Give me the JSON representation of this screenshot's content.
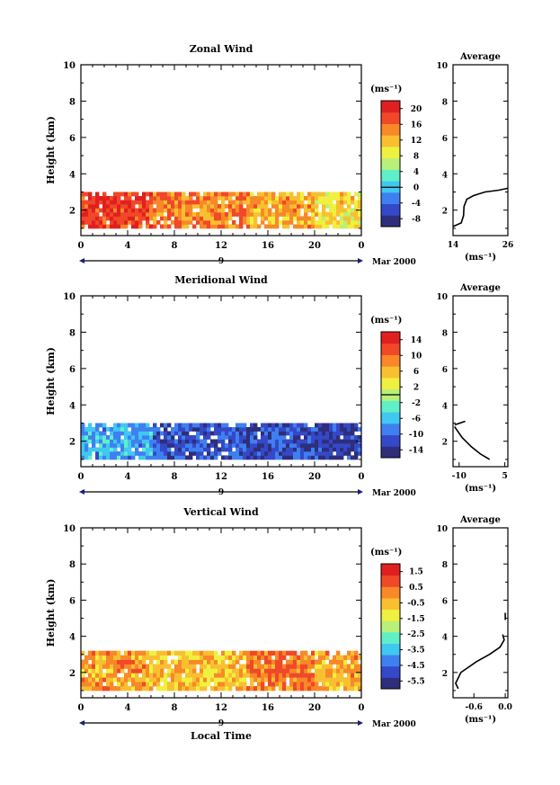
{
  "chart_data": [
    {
      "type": "heatmap",
      "title": "Zonal Wind",
      "ylabel": "Height (km)",
      "xlabel": "",
      "xticks": [
        "0",
        "4",
        "8",
        "12",
        "16",
        "20",
        "0"
      ],
      "yticks": [
        "2",
        "4",
        "6",
        "8",
        "10"
      ],
      "xlim": [
        0,
        24
      ],
      "ylim": [
        0.6,
        10
      ],
      "date_marker": "9",
      "date_text": "Mar 2000",
      "colorbar": {
        "unit": "(ms⁻¹)",
        "ticks": [
          "20",
          "16",
          "12",
          "8",
          "4",
          "0",
          "-4",
          "-8"
        ],
        "range": [
          -10,
          22
        ],
        "zero_line": 0,
        "colors": [
          "#2e2e7a",
          "#3548c8",
          "#3f80f0",
          "#40c8f0",
          "#5ff0c8",
          "#b8f07a",
          "#f0f040",
          "#f8c030",
          "#f88828",
          "#f04828",
          "#e02020"
        ]
      },
      "field": {
        "height_range_km": [
          1.0,
          3.0
        ],
        "gaps": "scattered missing bins near top of echo region",
        "local_time_segments": [
          {
            "from": 0,
            "to": 6,
            "value": 19
          },
          {
            "from": 6,
            "to": 14,
            "value": 15
          },
          {
            "from": 14,
            "to": 20,
            "value": 13
          },
          {
            "from": 20,
            "to": 24,
            "value": 10
          }
        ]
      },
      "profile": {
        "title": "Average",
        "xticks": [
          "14",
          "26"
        ],
        "xlim": [
          14,
          26
        ],
        "xlabel": "(ms⁻¹)",
        "yticks": [
          "2",
          "4",
          "6",
          "8",
          "10"
        ],
        "points": [
          [
            14,
            1.1
          ],
          [
            15.8,
            1.3
          ],
          [
            16.3,
            1.7
          ],
          [
            16.4,
            2.2
          ],
          [
            17,
            2.6
          ],
          [
            18.5,
            2.8
          ],
          [
            21,
            3.0
          ],
          [
            24,
            3.1
          ],
          [
            26,
            3.2
          ]
        ]
      }
    },
    {
      "type": "heatmap",
      "title": "Meridional Wind",
      "ylabel": "Height (km)",
      "xlabel": "",
      "xticks": [
        "0",
        "4",
        "8",
        "12",
        "16",
        "20",
        "0"
      ],
      "yticks": [
        "2",
        "4",
        "6",
        "8",
        "10"
      ],
      "xlim": [
        0,
        24
      ],
      "ylim": [
        0.6,
        10
      ],
      "date_marker": "9",
      "date_text": "Mar 2000",
      "colorbar": {
        "unit": "(ms⁻¹)",
        "ticks": [
          "14",
          "10",
          "6",
          "2",
          "-2",
          "-6",
          "-10",
          "-14"
        ],
        "range": [
          -16,
          16
        ],
        "zero_line": 0,
        "colors": [
          "#2e2e7a",
          "#3548c8",
          "#3f80f0",
          "#40c8f0",
          "#5ff0c8",
          "#b8f07a",
          "#f0f040",
          "#f8c030",
          "#f88828",
          "#f04828",
          "#e02020"
        ]
      },
      "field": {
        "height_range_km": [
          1.0,
          3.0
        ],
        "gaps": "scattered missing bins",
        "local_time_segments": [
          {
            "from": 0,
            "to": 6,
            "value": -7
          },
          {
            "from": 6,
            "to": 14,
            "value": -11
          },
          {
            "from": 14,
            "to": 20,
            "value": -12
          },
          {
            "from": 20,
            "to": 24,
            "value": -13
          }
        ]
      },
      "profile": {
        "title": "Average",
        "xticks": [
          "-10",
          "5"
        ],
        "xlim": [
          -12,
          6
        ],
        "xlabel": "(ms⁻¹)",
        "yticks": [
          "2",
          "4",
          "6",
          "8",
          "10"
        ],
        "points": [
          [
            -11.5,
            2.9
          ],
          [
            -8,
            3.1
          ]
        ],
        "points2": [
          [
            -11.5,
            2.8
          ],
          [
            -9,
            2.2
          ],
          [
            -6,
            1.7
          ],
          [
            -3,
            1.3
          ],
          [
            0,
            1.0
          ]
        ]
      }
    },
    {
      "type": "heatmap",
      "title": "Vertical Wind",
      "ylabel": "Height (km)",
      "xlabel": "Local Time",
      "xticks": [
        "0",
        "4",
        "8",
        "12",
        "16",
        "20",
        "0"
      ],
      "yticks": [
        "2",
        "4",
        "6",
        "8",
        "10"
      ],
      "xlim": [
        0,
        24
      ],
      "ylim": [
        0.6,
        10
      ],
      "date_marker": "9",
      "date_text": "Mar 2000",
      "colorbar": {
        "unit": "(ms⁻¹)",
        "ticks": [
          "1.5",
          "0.5",
          "-0.5",
          "-1.5",
          "-2.5",
          "-3.5",
          "-4.5",
          "-5.5"
        ],
        "range": [
          -6,
          2
        ],
        "zero_line": null,
        "colors": [
          "#2e2e7a",
          "#3548c8",
          "#3f80f0",
          "#40c8f0",
          "#5ff0c8",
          "#b8f07a",
          "#f0f040",
          "#f8c030",
          "#f88828",
          "#f04828",
          "#e02020"
        ]
      },
      "field": {
        "height_range_km": [
          1.0,
          3.2
        ],
        "gaps": "few missing bins",
        "local_time_segments": [
          {
            "from": 0,
            "to": 6,
            "value": -0.2
          },
          {
            "from": 6,
            "to": 14,
            "value": -0.6
          },
          {
            "from": 14,
            "to": 20,
            "value": 0.4
          },
          {
            "from": 20,
            "to": 24,
            "value": -0.3
          }
        ]
      },
      "profile": {
        "title": "Average",
        "xticks": [
          "-0.6",
          "0.0"
        ],
        "xlim": [
          -1.0,
          0.05
        ],
        "xlabel": "(ms⁻¹)",
        "yticks": [
          "2",
          "4",
          "6",
          "8",
          "10"
        ],
        "points": [
          [
            -0.9,
            1.1
          ],
          [
            -0.95,
            1.4
          ],
          [
            -0.85,
            2.0
          ],
          [
            -0.55,
            2.6
          ],
          [
            -0.3,
            3.0
          ],
          [
            -0.1,
            3.4
          ],
          [
            -0.02,
            3.8
          ],
          [
            -0.05,
            4.1
          ]
        ],
        "points2": [
          [
            0.0,
            4.9
          ],
          [
            0.0,
            5.3
          ]
        ]
      }
    }
  ]
}
